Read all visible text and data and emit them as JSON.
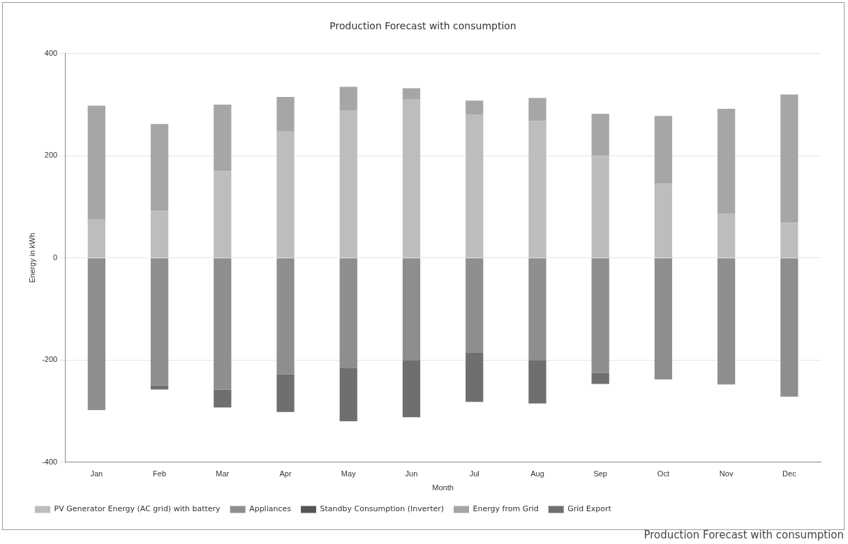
{
  "chart_data": {
    "type": "bar",
    "title": "Production Forecast with consumption",
    "xlabel": "Month",
    "ylabel": "Energy in kWh",
    "categories": [
      "Jan",
      "Feb",
      "Mar",
      "Apr",
      "May",
      "Jun",
      "Jul",
      "Aug",
      "Sep",
      "Oct",
      "Nov",
      "Dec"
    ],
    "series": [
      {
        "name": "PV Generator Energy (AC grid) with battery",
        "color": "#bdbdbd",
        "values": [
          75,
          92,
          170,
          248,
          288,
          310,
          280,
          268,
          200,
          145,
          87,
          69
        ]
      },
      {
        "name": "Appliances",
        "color": "#8e8e8e",
        "values": [
          -298,
          -250,
          -258,
          -228,
          -215,
          -200,
          -185,
          -200,
          -225,
          -238,
          -248,
          -272
        ]
      },
      {
        "name": "Standby Consumption (Inverter)",
        "color": "#555555",
        "values": [
          null,
          null,
          null,
          null,
          null,
          null,
          null,
          null,
          null,
          null,
          null,
          null
        ]
      },
      {
        "name": "Energy from Grid",
        "color": "#a6a6a6",
        "values": [
          223,
          170,
          130,
          67,
          47,
          22,
          28,
          45,
          82,
          133,
          205,
          251
        ]
      },
      {
        "name": "Grid Export",
        "color": "#6f6f6f",
        "values": [
          null,
          -8,
          -35,
          -74,
          -105,
          -112,
          -97,
          -85,
          -22,
          null,
          null,
          null
        ]
      }
    ],
    "stacked": true,
    "ylim": [
      -400,
      400
    ],
    "yticks": [
      -400,
      -200,
      0,
      200,
      400
    ],
    "grid": "y",
    "legend": "bottom left",
    "annotations": [
      "Production Forecast with consumption"
    ]
  }
}
